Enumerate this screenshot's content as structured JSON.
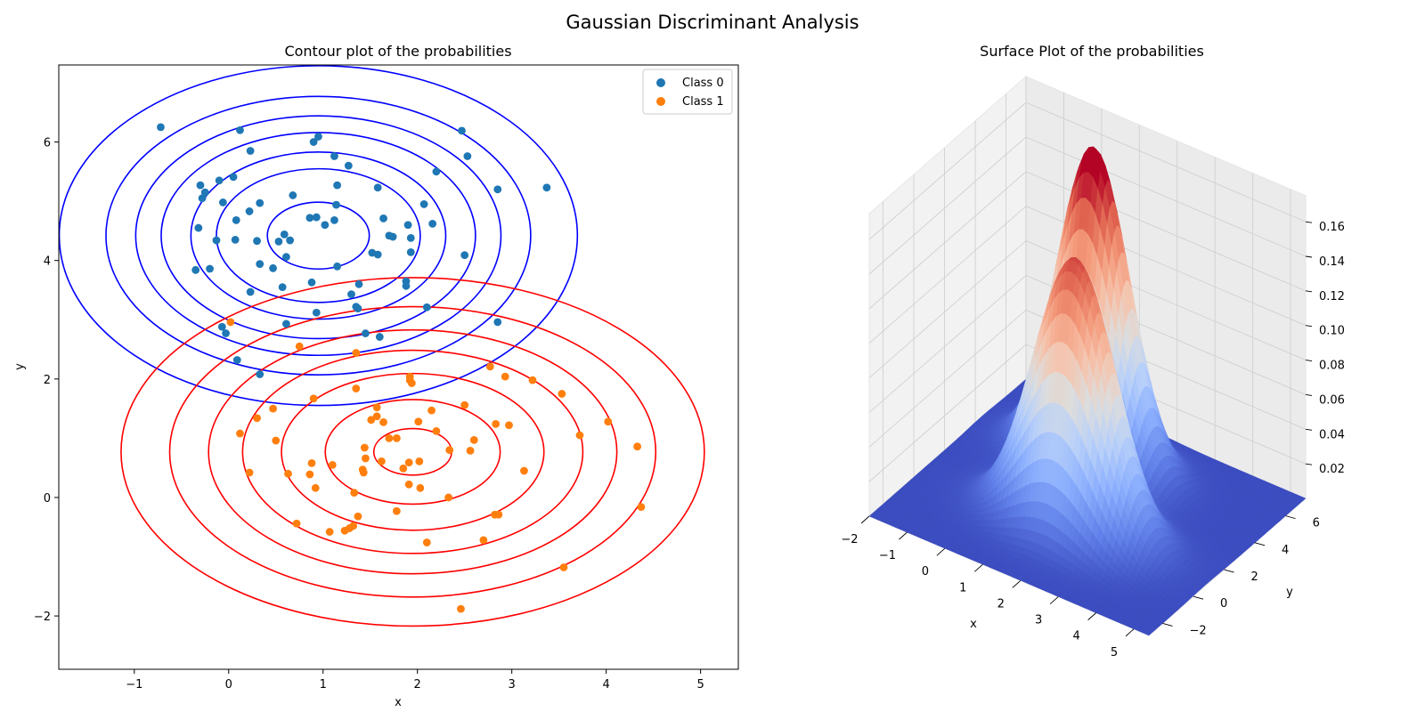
{
  "figure": {
    "suptitle": "Gaussian Discriminant Analysis"
  },
  "chart_data": [
    {
      "type": "scatter",
      "title": "Contour plot of the probabilities",
      "xlabel": "x",
      "ylabel": "y",
      "xlim": [
        -1.8,
        5.4
      ],
      "ylim": [
        -2.9,
        7.3
      ],
      "xticks": [
        -1,
        0,
        1,
        2,
        3,
        4,
        5
      ],
      "yticks": [
        -2,
        0,
        2,
        4,
        6
      ],
      "legend": {
        "position": "top-right",
        "entries": [
          "Class 0",
          "Class 1"
        ]
      },
      "grid": false,
      "series": [
        {
          "name": "Class 0",
          "color": "#1f77b4",
          "points": [
            [
              -0.72,
              6.25
            ],
            [
              0.12,
              6.2
            ],
            [
              2.47,
              6.19
            ],
            [
              0.95,
              6.09
            ],
            [
              0.9,
              6.0
            ],
            [
              0.23,
              5.85
            ],
            [
              1.12,
              5.76
            ],
            [
              2.53,
              5.76
            ],
            [
              1.27,
              5.6
            ],
            [
              2.2,
              5.5
            ],
            [
              -0.1,
              5.35
            ],
            [
              0.05,
              5.41
            ],
            [
              -0.3,
              5.27
            ],
            [
              1.15,
              5.27
            ],
            [
              1.58,
              5.23
            ],
            [
              2.85,
              5.2
            ],
            [
              3.37,
              5.23
            ],
            [
              -0.25,
              5.15
            ],
            [
              -0.28,
              5.05
            ],
            [
              0.68,
              5.1
            ],
            [
              -0.06,
              4.98
            ],
            [
              0.33,
              4.97
            ],
            [
              1.14,
              4.94
            ],
            [
              2.07,
              4.95
            ],
            [
              0.22,
              4.83
            ],
            [
              0.08,
              4.68
            ],
            [
              0.86,
              4.72
            ],
            [
              0.93,
              4.73
            ],
            [
              1.12,
              4.68
            ],
            [
              1.64,
              4.71
            ],
            [
              1.02,
              4.6
            ],
            [
              1.9,
              4.6
            ],
            [
              2.16,
              4.62
            ],
            [
              -0.32,
              4.55
            ],
            [
              0.59,
              4.44
            ],
            [
              1.7,
              4.42
            ],
            [
              1.74,
              4.4
            ],
            [
              1.93,
              4.38
            ],
            [
              -0.13,
              4.34
            ],
            [
              0.07,
              4.35
            ],
            [
              0.3,
              4.33
            ],
            [
              0.53,
              4.32
            ],
            [
              0.65,
              4.34
            ],
            [
              1.52,
              4.13
            ],
            [
              1.93,
              4.14
            ],
            [
              1.58,
              4.1
            ],
            [
              2.5,
              4.09
            ],
            [
              0.61,
              4.06
            ],
            [
              0.33,
              3.94
            ],
            [
              -0.2,
              3.86
            ],
            [
              0.47,
              3.87
            ],
            [
              1.15,
              3.9
            ],
            [
              -0.35,
              3.84
            ],
            [
              1.88,
              3.65
            ],
            [
              0.88,
              3.63
            ],
            [
              1.38,
              3.6
            ],
            [
              0.57,
              3.55
            ],
            [
              1.88,
              3.57
            ],
            [
              0.23,
              3.47
            ],
            [
              1.3,
              3.43
            ],
            [
              1.35,
              3.22
            ],
            [
              2.1,
              3.21
            ],
            [
              1.37,
              3.19
            ],
            [
              0.93,
              3.12
            ],
            [
              2.85,
              2.96
            ],
            [
              0.61,
              2.93
            ],
            [
              -0.07,
              2.88
            ],
            [
              -0.03,
              2.77
            ],
            [
              1.45,
              2.77
            ],
            [
              1.6,
              2.71
            ],
            [
              0.09,
              2.32
            ],
            [
              0.33,
              2.08
            ]
          ]
        },
        {
          "name": "Class 1",
          "color": "#ff7f0e",
          "points": [
            [
              0.02,
              2.96
            ],
            [
              0.75,
              2.55
            ],
            [
              1.35,
              2.44
            ],
            [
              2.77,
              2.21
            ],
            [
              1.92,
              2.04
            ],
            [
              2.93,
              2.04
            ],
            [
              1.92,
              1.98
            ],
            [
              3.22,
              1.98
            ],
            [
              1.94,
              1.93
            ],
            [
              1.35,
              1.84
            ],
            [
              0.9,
              1.67
            ],
            [
              3.53,
              1.75
            ],
            [
              2.5,
              1.56
            ],
            [
              1.57,
              1.52
            ],
            [
              0.47,
              1.5
            ],
            [
              2.15,
              1.47
            ],
            [
              1.57,
              1.37
            ],
            [
              0.3,
              1.34
            ],
            [
              1.51,
              1.31
            ],
            [
              2.01,
              1.28
            ],
            [
              1.64,
              1.27
            ],
            [
              4.02,
              1.28
            ],
            [
              2.83,
              1.24
            ],
            [
              2.97,
              1.22
            ],
            [
              2.2,
              1.12
            ],
            [
              0.12,
              1.08
            ],
            [
              3.72,
              1.05
            ],
            [
              1.7,
              1.0
            ],
            [
              1.78,
              1.0
            ],
            [
              2.6,
              0.97
            ],
            [
              0.5,
              0.96
            ],
            [
              1.44,
              0.84
            ],
            [
              4.33,
              0.86
            ],
            [
              2.34,
              0.8
            ],
            [
              2.56,
              0.79
            ],
            [
              1.45,
              0.66
            ],
            [
              1.62,
              0.61
            ],
            [
              1.91,
              0.59
            ],
            [
              2.02,
              0.61
            ],
            [
              0.88,
              0.58
            ],
            [
              1.1,
              0.55
            ],
            [
              1.85,
              0.49
            ],
            [
              1.42,
              0.47
            ],
            [
              3.13,
              0.45
            ],
            [
              1.43,
              0.42
            ],
            [
              0.22,
              0.42
            ],
            [
              0.63,
              0.4
            ],
            [
              0.86,
              0.39
            ],
            [
              1.91,
              0.22
            ],
            [
              0.92,
              0.16
            ],
            [
              2.03,
              0.16
            ],
            [
              1.33,
              0.08
            ],
            [
              2.33,
              0.0
            ],
            [
              4.37,
              -0.16
            ],
            [
              1.78,
              -0.23
            ],
            [
              2.82,
              -0.29
            ],
            [
              2.86,
              -0.29
            ],
            [
              1.37,
              -0.32
            ],
            [
              0.72,
              -0.44
            ],
            [
              1.32,
              -0.48
            ],
            [
              1.28,
              -0.52
            ],
            [
              1.23,
              -0.56
            ],
            [
              1.07,
              -0.58
            ],
            [
              2.7,
              -0.72
            ],
            [
              2.1,
              -0.76
            ],
            [
              3.55,
              -1.18
            ],
            [
              2.46,
              -1.88
            ]
          ]
        }
      ],
      "contours": [
        {
          "class": "Class 0",
          "color": "#0000ff",
          "center": [
            0.95,
            4.42
          ],
          "sx": 0.9,
          "sy": 0.94,
          "levels": [
            0.6,
            1.2,
            1.5,
            1.85,
            2.15,
            2.5,
            3.05
          ]
        },
        {
          "class": "Class 1",
          "color": "#ff0000",
          "center": [
            1.95,
            0.77
          ],
          "sx": 1.03,
          "sy": 0.98,
          "levels": [
            0.4,
            0.9,
            1.35,
            1.75,
            2.1,
            2.5,
            3.0
          ]
        }
      ]
    },
    {
      "type": "surface",
      "title": "Surface Plot of the probabilities",
      "xlabel": "x",
      "ylabel": "y",
      "xlim": [
        -2,
        5.4
      ],
      "ylim": [
        -2.9,
        7.3
      ],
      "zlim": [
        0,
        0.175
      ],
      "xticks": [
        -2,
        -1,
        0,
        1,
        2,
        3,
        4,
        5
      ],
      "yticks": [
        -2,
        0,
        2,
        4,
        6
      ],
      "zticks": [
        0.02,
        0.04,
        0.06,
        0.08,
        0.1,
        0.12,
        0.14,
        0.16
      ],
      "ztick_labels": [
        "0.02",
        "0.04",
        "0.06",
        "0.08",
        "0.10",
        "0.12",
        "0.14",
        "0.16"
      ],
      "colormap": "coolwarm",
      "peaks": [
        {
          "mean": [
            0.95,
            4.42
          ],
          "sx": 0.9,
          "sy": 0.94,
          "weight": 0.98
        },
        {
          "mean": [
            1.95,
            0.77
          ],
          "sx": 1.03,
          "sy": 0.98,
          "weight": 1.0
        }
      ]
    }
  ]
}
